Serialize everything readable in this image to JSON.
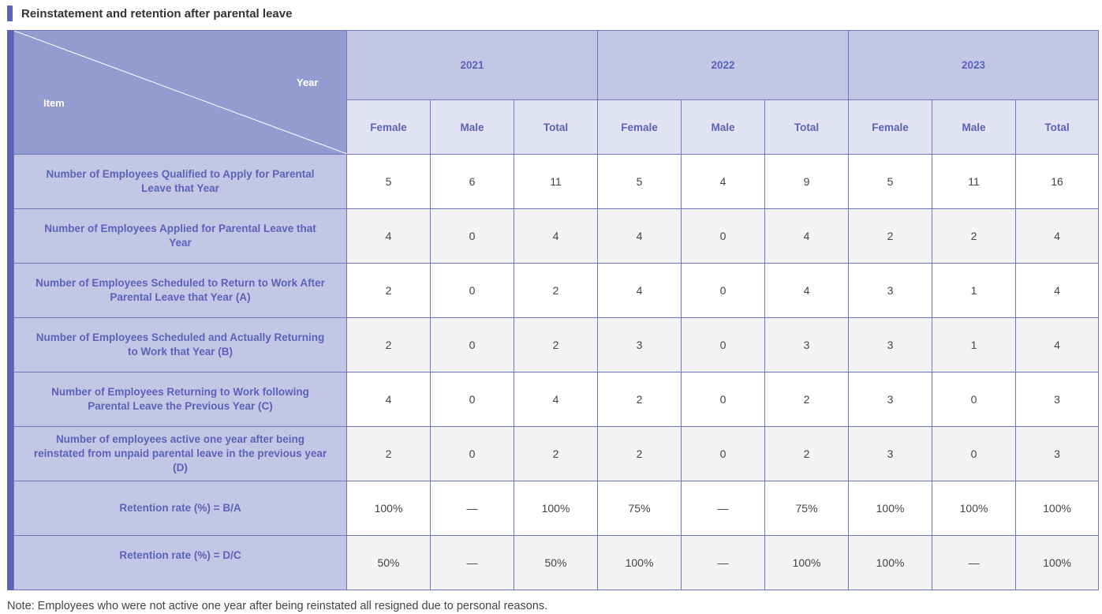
{
  "title": "Reinstatement and retention after parental leave",
  "header": {
    "corner_year": "Year",
    "corner_item": "Item",
    "years": [
      "2021",
      "2022",
      "2023"
    ],
    "subcols": [
      "Female",
      "Male",
      "Total",
      "Female",
      "Male",
      "Total",
      "Female",
      "Male",
      "Total"
    ]
  },
  "rows": [
    {
      "label": "Number of Employees Qualified to Apply for Parental Leave that Year",
      "values": [
        "5",
        "6",
        "11",
        "5",
        "4",
        "9",
        "5",
        "11",
        "16"
      ]
    },
    {
      "label": "Number of Employees Applied for Parental Leave that Year",
      "values": [
        "4",
        "0",
        "4",
        "4",
        "0",
        "4",
        "2",
        "2",
        "4"
      ]
    },
    {
      "label": "Number of Employees Scheduled to Return to Work After Parental Leave that Year (A)",
      "values": [
        "2",
        "0",
        "2",
        "4",
        "0",
        "4",
        "3",
        "1",
        "4"
      ]
    },
    {
      "label": "Number of Employees Scheduled and Actually Returning to Work that Year (B)",
      "values": [
        "2",
        "0",
        "2",
        "3",
        "0",
        "3",
        "3",
        "1",
        "4"
      ]
    },
    {
      "label": "Number of Employees Returning to Work following Parental Leave the Previous Year (C)",
      "values": [
        "4",
        "0",
        "4",
        "2",
        "0",
        "2",
        "3",
        "0",
        "3"
      ]
    },
    {
      "label": "Number of employees active one year after being reinstated from unpaid parental leave in the previous year (D)",
      "values": [
        "2",
        "0",
        "2",
        "2",
        "0",
        "2",
        "3",
        "0",
        "3"
      ]
    },
    {
      "label": "Retention rate (%) = B/A",
      "values": [
        "100%",
        "—",
        "100%",
        "75%",
        "—",
        "75%",
        "100%",
        "100%",
        "100%"
      ]
    },
    {
      "label": "Retention rate (%) = D/C",
      "values": [
        "50%",
        "—",
        "50%",
        "100%",
        "—",
        "100%",
        "100%",
        "—",
        "100%"
      ]
    }
  ],
  "note": "Note: Employees who were not active one year after being reinstated all resigned due to personal reasons.",
  "colors": {
    "accent": "#5a63b8",
    "header_dark": "#949ccf",
    "header_mid": "#c4c6e6",
    "header_light": "#e1e2f2",
    "row_alt": "#f4f4f4"
  }
}
